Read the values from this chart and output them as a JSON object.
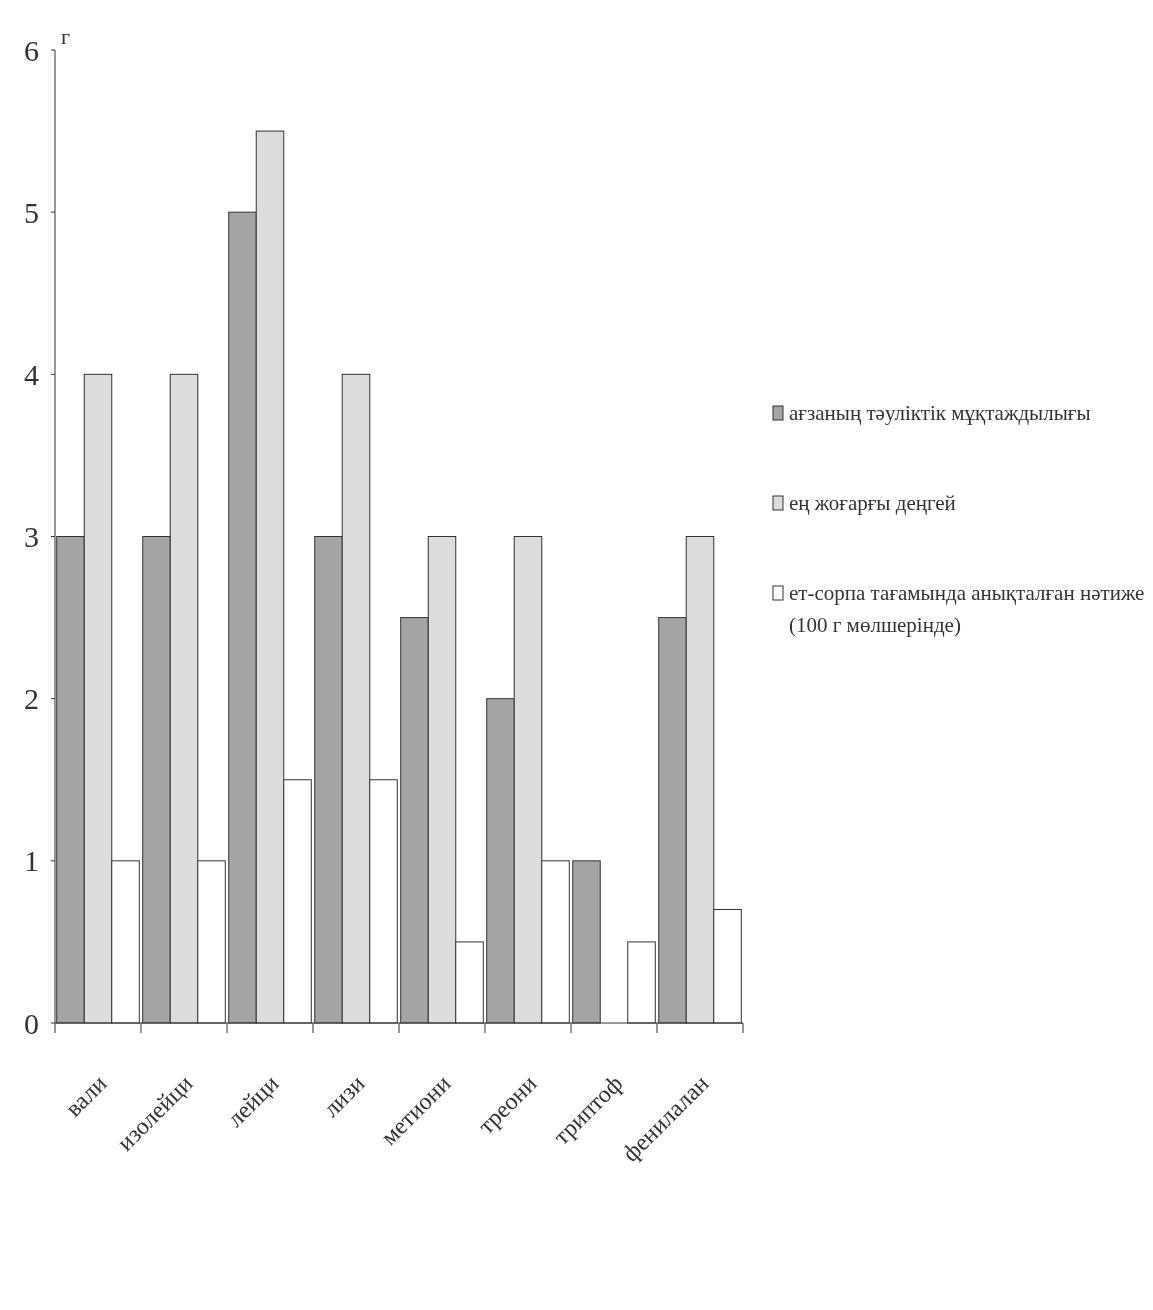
{
  "chart_data": {
    "type": "bar",
    "ylabel": "г",
    "categories": [
      "вали",
      "изолейци",
      "лейци",
      "лизи",
      "метиони",
      "треони",
      "триптоф",
      "фенилалан"
    ],
    "series": [
      {
        "name": "ағзаның тәуліктік мұқтаждылығы",
        "color": "#a4a4a4",
        "values": [
          3,
          3,
          5,
          3,
          2.5,
          2,
          1,
          2.5
        ]
      },
      {
        "name": "ең жоғарғы деңгей",
        "color": "#dcdcdc",
        "values": [
          4,
          4,
          5.5,
          4,
          3,
          3,
          null,
          3
        ]
      },
      {
        "name": "ет-сорпа тағамында анықталған нәтиже (100 г мөлшерінде)",
        "color": "#ffffff",
        "values": [
          1,
          1,
          1.5,
          1.5,
          0.5,
          1,
          0.5,
          0.7
        ]
      }
    ],
    "ylim": [
      0,
      6
    ],
    "yticks": [
      0,
      1,
      2,
      3,
      4,
      5,
      6
    ],
    "grid": false,
    "legend": "right"
  }
}
